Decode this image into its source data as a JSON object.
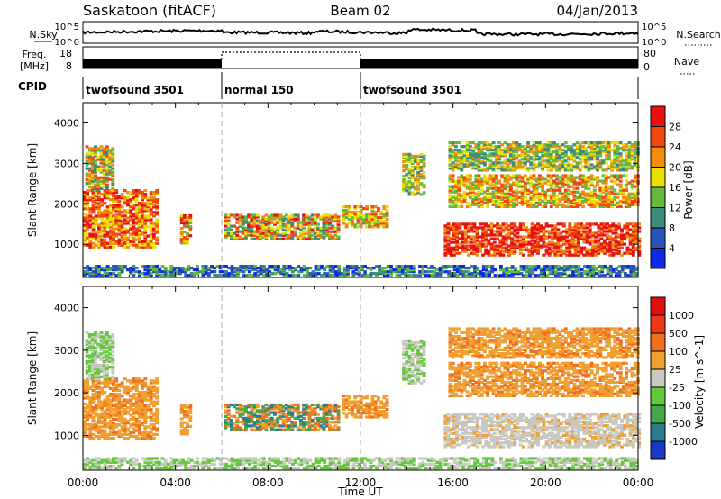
{
  "header": {
    "station": "Saskatoon (fitACF)",
    "beam": "Beam 02",
    "date": "04/Jan/2013"
  },
  "strip_labels": {
    "nsky": "N.Sky",
    "freq": "Freq.",
    "freq_unit": "[MHz]",
    "cpid": "CPID",
    "nsearch": "N.Search",
    "nave": "Nave"
  },
  "strip_ticks": {
    "nsky_top": "10^5",
    "nsky_bottom": "10^0",
    "freq_top": "18",
    "freq_bottom": "8",
    "nave_top": "80",
    "nave_bottom": "0"
  },
  "cpid_segments": [
    {
      "label": "twofsound 3501",
      "start_hour": 0,
      "end_hour": 6
    },
    {
      "label": "normal 150",
      "start_hour": 6,
      "end_hour": 12
    },
    {
      "label": "twofsound 3501",
      "start_hour": 12,
      "end_hour": 24
    }
  ],
  "chart_data": [
    {
      "type": "heatmap",
      "name": "power",
      "ylabel": "Slant Range [km]",
      "yticks": [
        "1000",
        "2000",
        "3000",
        "4000"
      ],
      "ylim": [
        180,
        4500
      ],
      "xlim_hours": [
        0,
        24
      ],
      "colorbar_label": "Power [dB]",
      "colorbar_ticks": [
        "4",
        "8",
        "12",
        "16",
        "20",
        "24",
        "28"
      ],
      "colorbar_range": [
        0,
        30
      ],
      "colors": [
        "#1028e8",
        "#2c54b8",
        "#3c8c7c",
        "#64b83c",
        "#e8e000",
        "#f08c10",
        "#f04810",
        "#e81010"
      ]
    },
    {
      "type": "heatmap",
      "name": "velocity",
      "ylabel": "Slant Range [km]",
      "yticks": [
        "1000",
        "2000",
        "3000",
        "4000"
      ],
      "ylim": [
        180,
        4500
      ],
      "xlim_hours": [
        0,
        24
      ],
      "xticks": [
        "00:00",
        "04:00",
        "08:00",
        "12:00",
        "16:00",
        "20:00",
        "00:00"
      ],
      "xlabel": "Time UT",
      "colorbar_label": "Velocity [m s^-1]",
      "colorbar_ticks": [
        "1000",
        "500",
        "100",
        "25",
        "-25",
        "-100",
        "-500",
        "-1000"
      ],
      "colors": [
        "#1838c8",
        "#2c7c8c",
        "#44a848",
        "#64c83c",
        "#c8c8c0",
        "#f0a030",
        "#f07020",
        "#f03818",
        "#e01010"
      ]
    }
  ]
}
